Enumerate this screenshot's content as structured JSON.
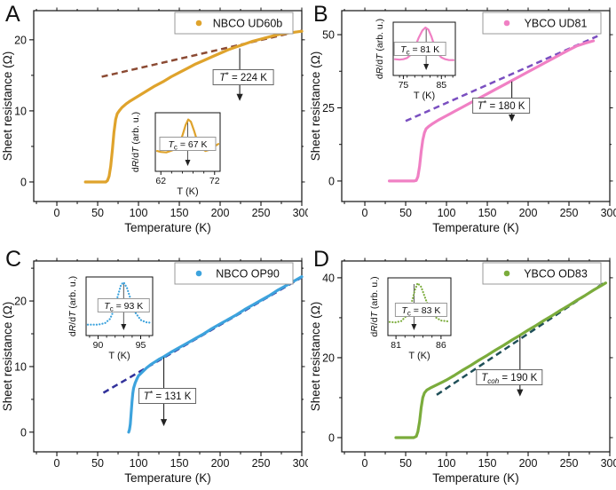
{
  "figure": {
    "inset_ylabel_parts": [
      "d",
      "R",
      "/d",
      "T",
      " (arb. u.)"
    ],
    "axis_color": "#111111",
    "box_border_color": "#999999"
  },
  "chart_data": [
    {
      "type": "scatter",
      "panel": "A",
      "legend": "NBCO UD60b",
      "color": "#DFA32C",
      "fit_color": "#8B4A33",
      "xlabel": "Temperature (K)",
      "ylabel": "Sheet resistance (Ω)",
      "xlim": [
        -28.3,
        300
      ],
      "ylim": [
        -2.75,
        24.1
      ],
      "xticks": [
        0,
        50,
        100,
        150,
        200,
        250,
        300
      ],
      "yticks": [
        0,
        10,
        20
      ],
      "y_minors": [
        5,
        15
      ],
      "curve": [
        [
          35,
          0
        ],
        [
          50,
          0
        ],
        [
          60,
          0
        ],
        [
          62,
          0.2
        ],
        [
          64,
          0.8
        ],
        [
          66,
          2.2
        ],
        [
          68,
          4.5
        ],
        [
          70,
          7
        ],
        [
          72,
          8.8
        ],
        [
          74,
          9.6
        ],
        [
          77,
          10.1
        ],
        [
          80,
          10.5
        ],
        [
          85,
          11
        ],
        [
          90,
          11.4
        ],
        [
          100,
          12.1
        ],
        [
          110,
          12.8
        ],
        [
          120,
          13.5
        ],
        [
          130,
          14.1
        ],
        [
          140,
          14.8
        ],
        [
          150,
          15.4
        ],
        [
          160,
          16
        ],
        [
          170,
          16.6
        ],
        [
          180,
          17.1
        ],
        [
          190,
          17.6
        ],
        [
          200,
          18.1
        ],
        [
          210,
          18.6
        ],
        [
          220,
          19
        ],
        [
          230,
          19.4
        ],
        [
          240,
          19.8
        ],
        [
          250,
          20.1
        ],
        [
          260,
          20.4
        ],
        [
          270,
          20.7
        ],
        [
          280,
          20.9
        ],
        [
          290,
          21.05
        ],
        [
          300,
          21.2
        ]
      ],
      "fit_line": [
        [
          55,
          14.8
        ],
        [
          300,
          21.3
        ]
      ],
      "annotation": {
        "sym": "T",
        "sup": "*",
        "sub": "",
        "rest": " = 224 K",
        "x": 224,
        "y1": 18.8,
        "y2": 11.4
      },
      "inset": {
        "xlabel": "T (K)",
        "xticks": [
          62,
          72
        ],
        "xlim": [
          61.3,
          72.7
        ],
        "minor_step": 2,
        "tc_x": 67,
        "tc": {
          "sym": "T",
          "sub": "c",
          "rest": " = 67 K"
        },
        "curve": [
          [
            61.3,
            0.3
          ],
          [
            62,
            0.28
          ],
          [
            63,
            0.27
          ],
          [
            63.8,
            0.3
          ],
          [
            64.5,
            0.33
          ],
          [
            65.2,
            0.42
          ],
          [
            66,
            0.62
          ],
          [
            66.6,
            0.85
          ],
          [
            67.1,
            0.97
          ],
          [
            67.6,
            0.92
          ],
          [
            68.2,
            0.72
          ],
          [
            68.8,
            0.5
          ],
          [
            69.5,
            0.36
          ],
          [
            70.3,
            0.3
          ],
          [
            71.2,
            0.33
          ],
          [
            72,
            0.4
          ],
          [
            72.7,
            0.45
          ]
        ]
      }
    },
    {
      "type": "scatter",
      "panel": "B",
      "legend": "YBCO UD81",
      "color": "#F080C4",
      "fit_color": "#7A4FC0",
      "xlabel": "Temperature (K)",
      "ylabel": "Sheet resistance (Ω)",
      "xlim": [
        -28.3,
        300
      ],
      "ylim": [
        -7,
        58.2
      ],
      "xticks": [
        0,
        50,
        100,
        150,
        200,
        250,
        300
      ],
      "yticks": [
        0,
        25,
        50
      ],
      "y_minors": [
        12.5,
        37.5
      ],
      "curve": [
        [
          30,
          0
        ],
        [
          45,
          0
        ],
        [
          60,
          0
        ],
        [
          63,
          0.2
        ],
        [
          65,
          1.5
        ],
        [
          67,
          5
        ],
        [
          69,
          10
        ],
        [
          71,
          14
        ],
        [
          73,
          16.5
        ],
        [
          75,
          17.8
        ],
        [
          78,
          18.6
        ],
        [
          82,
          19.4
        ],
        [
          90,
          20.8
        ],
        [
          100,
          22.3
        ],
        [
          110,
          23.8
        ],
        [
          120,
          25.3
        ],
        [
          130,
          26.8
        ],
        [
          140,
          28.3
        ],
        [
          150,
          29.8
        ],
        [
          160,
          31.3
        ],
        [
          170,
          32.8
        ],
        [
          180,
          34.3
        ],
        [
          190,
          35.8
        ],
        [
          200,
          37.3
        ],
        [
          210,
          38.8
        ],
        [
          220,
          40.3
        ],
        [
          230,
          41.8
        ],
        [
          240,
          43.3
        ],
        [
          250,
          44.8
        ],
        [
          260,
          46.2
        ],
        [
          270,
          47.1
        ],
        [
          280,
          47.9
        ]
      ],
      "fit_line": [
        [
          50,
          20.5
        ],
        [
          285,
          49.5
        ]
      ],
      "annotation": {
        "sym": "T",
        "sup": "*",
        "sub": "",
        "rest": " = 180 K",
        "x": 180,
        "y1": 34.0,
        "y2": 20.3
      },
      "inset": {
        "xlabel": "T (K)",
        "xticks": [
          75,
          85
        ],
        "xlim": [
          72.8,
          88.2
        ],
        "minor_step": 2,
        "tc_x": 81,
        "tc": {
          "sym": "T",
          "sub": "c",
          "rest": " = 81 K"
        },
        "curve": [
          [
            72.8,
            0.24
          ],
          [
            74,
            0.23
          ],
          [
            75,
            0.24
          ],
          [
            76,
            0.27
          ],
          [
            77,
            0.35
          ],
          [
            78,
            0.52
          ],
          [
            79,
            0.75
          ],
          [
            80,
            0.93
          ],
          [
            80.8,
            1.0
          ],
          [
            81.6,
            0.95
          ],
          [
            82.4,
            0.78
          ],
          [
            83.2,
            0.55
          ],
          [
            84,
            0.38
          ],
          [
            85,
            0.28
          ],
          [
            86,
            0.24
          ],
          [
            87,
            0.22
          ],
          [
            88.2,
            0.22
          ]
        ]
      }
    },
    {
      "type": "scatter",
      "panel": "C",
      "legend": "NBCO OP90",
      "color": "#3DA3DD",
      "fit_color": "#32329B",
      "xlabel": "Temperature (K)",
      "ylabel": "Sheet resistance (Ω)",
      "xlim": [
        -28.3,
        300
      ],
      "ylim": [
        -3,
        26.1
      ],
      "xticks": [
        0,
        50,
        100,
        150,
        200,
        250,
        300
      ],
      "yticks": [
        0,
        10,
        20
      ],
      "y_minors": [
        5,
        15,
        25
      ],
      "curve": [
        [
          88,
          0
        ],
        [
          89,
          0.4
        ],
        [
          90,
          1.2
        ],
        [
          91,
          2.8
        ],
        [
          92,
          4.6
        ],
        [
          93,
          5.9
        ],
        [
          94,
          6.7
        ],
        [
          96,
          7.5
        ],
        [
          98,
          8.1
        ],
        [
          100,
          8.6
        ],
        [
          105,
          9.2
        ],
        [
          110,
          9.8
        ],
        [
          115,
          10.3
        ],
        [
          120,
          10.7
        ],
        [
          125,
          11.1
        ],
        [
          131,
          11.5
        ],
        [
          140,
          12.2
        ],
        [
          150,
          12.9
        ],
        [
          160,
          13.6
        ],
        [
          170,
          14.3
        ],
        [
          180,
          15
        ],
        [
          190,
          15.8
        ],
        [
          200,
          16.5
        ],
        [
          210,
          17.2
        ],
        [
          220,
          17.9
        ],
        [
          230,
          18.7
        ],
        [
          240,
          19.4
        ],
        [
          250,
          20.1
        ],
        [
          260,
          20.8
        ],
        [
          270,
          21.6
        ],
        [
          280,
          22.3
        ],
        [
          290,
          23
        ],
        [
          300,
          23.7
        ]
      ],
      "fit_line": [
        [
          57,
          6
        ],
        [
          300,
          23.6
        ]
      ],
      "annotation": {
        "sym": "T",
        "sup": "*",
        "sub": "",
        "rest": " = 131 K",
        "x": 131,
        "y1": 11.4,
        "y2": 0.9
      },
      "inset": {
        "xlabel": "T (K)",
        "xticks": [
          90,
          95
        ],
        "xlim": [
          88.8,
          96.2
        ],
        "minor_step": 1,
        "tc_x": 93,
        "tc": {
          "sym": "T",
          "sub": "c",
          "rest": " = 93 K"
        },
        "curve": [
          [
            88.8,
            0.1
          ],
          [
            90,
            0.1
          ],
          [
            90.8,
            0.13
          ],
          [
            91.4,
            0.22
          ],
          [
            91.9,
            0.42
          ],
          [
            92.3,
            0.7
          ],
          [
            92.7,
            0.95
          ],
          [
            93.0,
            1.0
          ],
          [
            93.4,
            0.88
          ],
          [
            93.9,
            0.6
          ],
          [
            94.4,
            0.35
          ],
          [
            95,
            0.2
          ],
          [
            95.6,
            0.15
          ],
          [
            96.2,
            0.14
          ]
        ]
      }
    },
    {
      "type": "scatter",
      "panel": "D",
      "legend": "YBCO OD83",
      "color": "#7BAC3C",
      "fit_color": "#1F4F58",
      "xlabel": "Temperature (K)",
      "ylabel": "Sheet resistance (Ω)",
      "xlim": [
        -28.3,
        300
      ],
      "ylim": [
        -3.56,
        44.2
      ],
      "xticks": [
        0,
        50,
        100,
        150,
        200,
        250,
        300
      ],
      "yticks": [
        0,
        20,
        40
      ],
      "y_minors": [
        10,
        30
      ],
      "curve": [
        [
          38,
          0
        ],
        [
          50,
          0
        ],
        [
          60,
          0
        ],
        [
          63,
          0.3
        ],
        [
          65,
          1.5
        ],
        [
          67,
          4
        ],
        [
          69,
          7.5
        ],
        [
          71,
          10
        ],
        [
          73,
          11.2
        ],
        [
          76,
          11.9
        ],
        [
          80,
          12.4
        ],
        [
          85,
          12.9
        ],
        [
          90,
          13.4
        ],
        [
          95,
          13.9
        ],
        [
          100,
          14.4
        ],
        [
          110,
          15.6
        ],
        [
          120,
          16.9
        ],
        [
          130,
          18.1
        ],
        [
          140,
          19.4
        ],
        [
          150,
          20.6
        ],
        [
          160,
          21.9
        ],
        [
          170,
          23.1
        ],
        [
          180,
          24.4
        ],
        [
          190,
          25.6
        ],
        [
          200,
          26.9
        ],
        [
          210,
          28.1
        ],
        [
          220,
          29.4
        ],
        [
          230,
          30.6
        ],
        [
          240,
          31.9
        ],
        [
          250,
          33.1
        ],
        [
          260,
          34.4
        ],
        [
          270,
          35.6
        ],
        [
          280,
          36.9
        ],
        [
          290,
          38.1
        ],
        [
          295,
          38.7
        ]
      ],
      "fit_line": [
        [
          88,
          10.7
        ],
        [
          295,
          39
        ]
      ],
      "annotation": {
        "sym": "T",
        "sup": "",
        "sub": "coh",
        "rest": " = 190 K",
        "x": 190,
        "y1": 25.4,
        "y2": 10.3
      },
      "inset": {
        "xlabel": "T (K)",
        "xticks": [
          81,
          86
        ],
        "xlim": [
          80.3,
          86.9
        ],
        "minor_step": 1,
        "tc_x": 83,
        "tc": {
          "sym": "T",
          "sub": "c",
          "rest": " = 83 K"
        },
        "curve": [
          [
            80.3,
            0.16
          ],
          [
            81,
            0.15
          ],
          [
            81.6,
            0.18
          ],
          [
            82.2,
            0.3
          ],
          [
            82.7,
            0.55
          ],
          [
            83.1,
            0.85
          ],
          [
            83.4,
            1.0
          ],
          [
            83.8,
            0.92
          ],
          [
            84.3,
            0.65
          ],
          [
            84.8,
            0.4
          ],
          [
            85.4,
            0.26
          ],
          [
            86,
            0.19
          ],
          [
            86.9,
            0.17
          ]
        ]
      }
    }
  ]
}
